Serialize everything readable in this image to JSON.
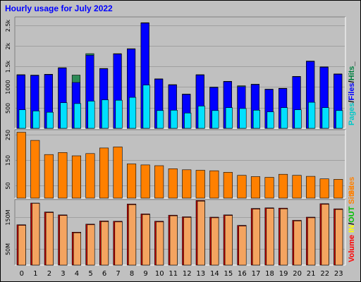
{
  "chart_data": {
    "type": "bar",
    "title": "Hourly usage for July 2022",
    "categories": [
      "0",
      "1",
      "2",
      "3",
      "4",
      "5",
      "6",
      "7",
      "8",
      "9",
      "10",
      "11",
      "12",
      "13",
      "14",
      "15",
      "16",
      "17",
      "18",
      "19",
      "20",
      "21",
      "22",
      "23"
    ],
    "panels": [
      {
        "id": "hits",
        "ylim": [
          0,
          2700
        ],
        "yticks": [
          500,
          1000,
          1500,
          2000,
          2500
        ],
        "ytick_labels": [
          "500",
          "1000",
          "1.5k",
          "2k",
          "2.5k"
        ],
        "legend": [
          {
            "label": "Pages",
            "color": "#00c8c8"
          },
          {
            "label": "/",
            "color": "#000000"
          },
          {
            "label": "Files",
            "color": "#0000ff"
          },
          {
            "label": "/",
            "color": "#000000"
          },
          {
            "label": "Hits",
            "color": "#008040"
          },
          {
            "label": "_",
            "color": "#000000"
          }
        ],
        "series": [
          {
            "name": "Hits",
            "color": "#2e8b57",
            "values": [
              1300,
              1290,
              1310,
              1470,
              1290,
              1810,
              1450,
              1810,
              1930,
              2560,
              1200,
              1060,
              830,
              1300,
              1000,
              1140,
              1030,
              1070,
              950,
              970,
              1260,
              1630,
              1490,
              1320
            ]
          },
          {
            "name": "Files",
            "color": "#0000ff",
            "values": [
              1290,
              1280,
              1300,
              1460,
              1110,
              1770,
              1440,
              1800,
              1920,
              2550,
              1190,
              1050,
              820,
              1290,
              990,
              1130,
              1010,
              1060,
              940,
              960,
              1250,
              1620,
              1480,
              1310
            ]
          },
          {
            "name": "Pages",
            "color": "#00e0ff",
            "values": [
              450,
              420,
              390,
              620,
              600,
              660,
              690,
              680,
              750,
              1050,
              430,
              440,
              370,
              540,
              430,
              500,
              480,
              440,
              400,
              500,
              450,
              630,
              500,
              430
            ]
          }
        ]
      },
      {
        "id": "sites",
        "ylim": [
          0,
          270
        ],
        "yticks": [
          50,
          150,
          250
        ],
        "ytick_labels": [
          "50",
          "150",
          "250"
        ],
        "legend": [
          {
            "label": "Sites",
            "color": "#ff8000"
          }
        ],
        "series": [
          {
            "name": "Sites",
            "color": "#ff8000",
            "values": [
              260,
              228,
              172,
              180,
              167,
              176,
              198,
              202,
              135,
              131,
              128,
              116,
              112,
              110,
              108,
              102,
              90,
              85,
              82,
              94,
              90,
              86,
              76,
              74
            ]
          }
        ]
      },
      {
        "id": "volume",
        "ylim": [
          0,
          205
        ],
        "yticks": [
          50,
          150
        ],
        "ytick_labels": [
          "50M",
          "150M"
        ],
        "legend": [
          {
            "label": "Volume",
            "color": "#ff0000"
          },
          {
            "label": "IN",
            "color": "#ffff00"
          },
          {
            "label": "/",
            "color": "#000000"
          },
          {
            "label": "OUT",
            "color": "#00c000"
          },
          {
            "label": "Sites",
            "color": "#ff8000"
          }
        ],
        "series": [
          {
            "name": "Volume",
            "color": "#cc0000",
            "values": [
              126,
              194,
              166,
              157,
              103,
              128,
              138,
              137,
              191,
              160,
              137,
              156,
              151,
              202,
              150,
              157,
              124,
              177,
              179,
              178,
              140,
              150,
              192,
              176
            ]
          },
          {
            "name": "OUT",
            "color": "#f4a460",
            "values": [
              124,
              193,
              164,
              155,
              101,
              126,
              136,
              135,
              189,
              158,
              135,
              154,
              149,
              200,
              148,
              155,
              122,
              175,
              177,
              176,
              138,
              148,
              190,
              174
            ]
          }
        ]
      }
    ]
  },
  "colors": {
    "background": "#c0c0c0",
    "plot_background": "#c0c0c0",
    "grid": "#a0a0a0",
    "title": "#0000ff"
  }
}
